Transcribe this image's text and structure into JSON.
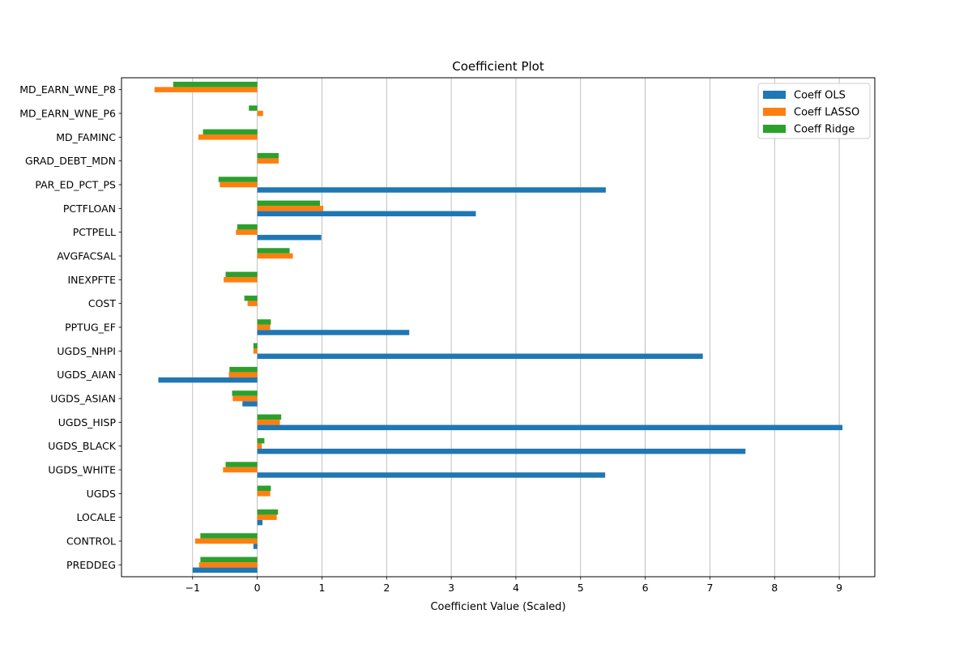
{
  "chart_data": {
    "type": "bar",
    "orientation": "horizontal",
    "title": "Coefficient Plot",
    "xlabel": "Coefficient Value (Scaled)",
    "ylabel": "",
    "xlim": [
      -2.1,
      9.55
    ],
    "xticks": [
      -1,
      0,
      1,
      2,
      3,
      4,
      5,
      6,
      7,
      8,
      9
    ],
    "xtick_labels": [
      "−1",
      "0",
      "1",
      "2",
      "3",
      "4",
      "5",
      "6",
      "7",
      "8",
      "9"
    ],
    "grid": "x",
    "legend_position": "top-right",
    "categories": [
      "PREDDEG",
      "CONTROL",
      "LOCALE",
      "UGDS",
      "UGDS_WHITE",
      "UGDS_BLACK",
      "UGDS_HISP",
      "UGDS_ASIAN",
      "UGDS_AIAN",
      "UGDS_NHPI",
      "PPTUG_EF",
      "COST",
      "INEXPFTE",
      "AVGFACSAL",
      "PCTPELL",
      "PCTFLOAN",
      "PAR_ED_PCT_PS",
      "GRAD_DEBT_MDN",
      "MD_FAMINC",
      "MD_EARN_WNE_P6",
      "MD_EARN_WNE_P8"
    ],
    "series": [
      {
        "name": "Coeff OLS",
        "color": "#1f77b4",
        "values": [
          -1.0,
          -0.06,
          0.08,
          0.0,
          5.38,
          7.55,
          9.05,
          -0.23,
          -1.53,
          6.89,
          2.35,
          0.0,
          0.0,
          0.0,
          0.99,
          3.38,
          5.39,
          0.0,
          0.0,
          0.0,
          0.0
        ]
      },
      {
        "name": "Coeff LASSO",
        "color": "#ff7f0e",
        "values": [
          -0.9,
          -0.96,
          0.3,
          0.2,
          -0.53,
          0.07,
          0.35,
          -0.38,
          -0.44,
          -0.06,
          0.2,
          -0.15,
          -0.52,
          0.55,
          -0.33,
          1.02,
          -0.58,
          0.33,
          -0.91,
          0.09,
          -1.59
        ]
      },
      {
        "name": "Coeff Ridge",
        "color": "#2ca02c",
        "values": [
          -0.88,
          -0.88,
          0.32,
          0.21,
          -0.49,
          0.11,
          0.37,
          -0.39,
          -0.43,
          -0.06,
          0.21,
          -0.2,
          -0.49,
          0.5,
          -0.31,
          0.97,
          -0.6,
          0.33,
          -0.84,
          -0.13,
          -1.3
        ]
      }
    ]
  }
}
